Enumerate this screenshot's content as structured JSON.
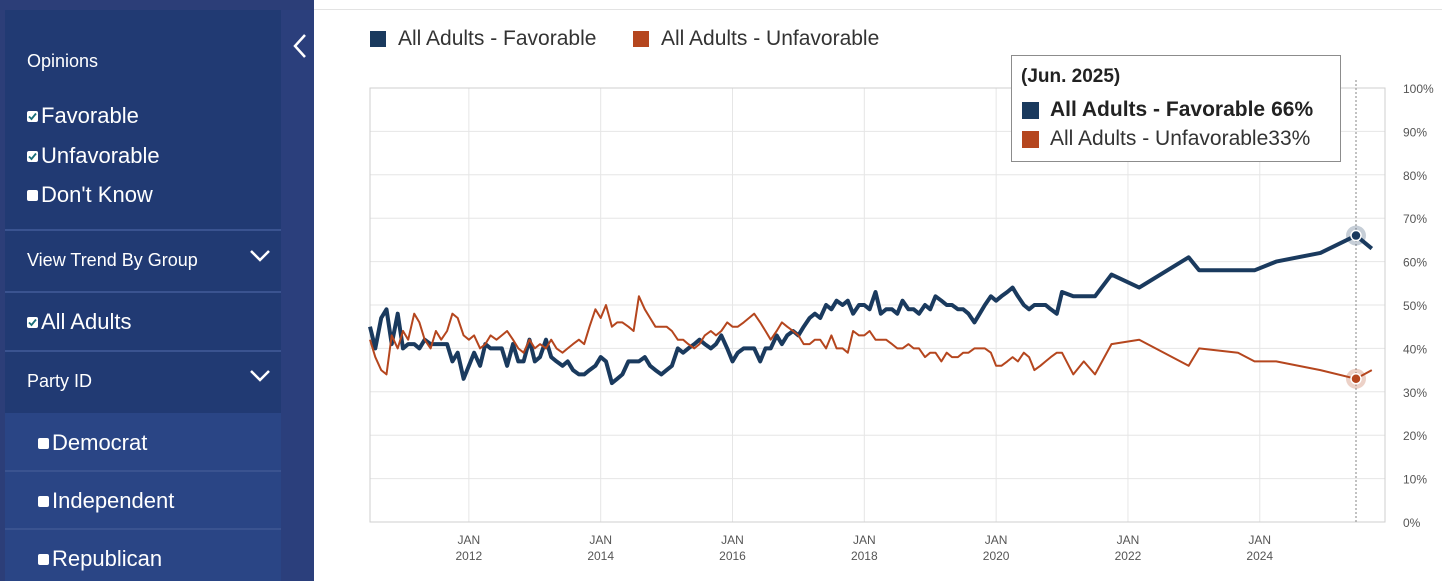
{
  "sidebar": {
    "opinions_title": "Opinions",
    "opinions": [
      {
        "label": "Favorable",
        "checked": true
      },
      {
        "label": "Unfavorable",
        "checked": true
      },
      {
        "label": "Don't Know",
        "checked": false
      }
    ],
    "trend_title": "View Trend By Group",
    "all_adults": {
      "label": "All Adults",
      "checked": true
    },
    "party_title": "Party ID",
    "parties": [
      {
        "label": "Democrat",
        "checked": false
      },
      {
        "label": "Independent",
        "checked": false
      },
      {
        "label": "Republican",
        "checked": false
      }
    ]
  },
  "tooltip": {
    "date": "(Jun. 2025)",
    "fav_label": "All Adults - Favorable",
    "fav_value": "66%",
    "unfav_label": "All Adults - Unfavorable",
    "unfav_value": "33%"
  },
  "colors": {
    "favorable": "#1a3a5e",
    "unfavorable": "#b5461e",
    "sidebar": "#213a73"
  },
  "chart_data": {
    "type": "line",
    "title": "",
    "xlabel": "",
    "ylabel": "",
    "ylim": [
      0,
      100
    ],
    "xlim": [
      2010.5,
      2025.9
    ],
    "yticks": [
      "0%",
      "10%",
      "20%",
      "30%",
      "40%",
      "50%",
      "60%",
      "70%",
      "80%",
      "90%",
      "100%"
    ],
    "xticks": [
      {
        "value": 2012,
        "month": "JAN",
        "year": "2012"
      },
      {
        "value": 2014,
        "month": "JAN",
        "year": "2014"
      },
      {
        "value": 2016,
        "month": "JAN",
        "year": "2016"
      },
      {
        "value": 2018,
        "month": "JAN",
        "year": "2018"
      },
      {
        "value": 2020,
        "month": "JAN",
        "year": "2020"
      },
      {
        "value": 2022,
        "month": "JAN",
        "year": "2022"
      },
      {
        "value": 2024,
        "month": "JAN",
        "year": "2024"
      }
    ],
    "highlight_x": 2025.46,
    "series": [
      {
        "name": "All Adults - Favorable",
        "color": "#1a3a5e",
        "points": [
          [
            2010.5,
            45
          ],
          [
            2010.58,
            40
          ],
          [
            2010.67,
            47
          ],
          [
            2010.75,
            49
          ],
          [
            2010.83,
            41
          ],
          [
            2010.92,
            48
          ],
          [
            2011.0,
            40
          ],
          [
            2011.08,
            41
          ],
          [
            2011.17,
            41
          ],
          [
            2011.25,
            40
          ],
          [
            2011.33,
            42
          ],
          [
            2011.42,
            41
          ],
          [
            2011.5,
            41
          ],
          [
            2011.58,
            41
          ],
          [
            2011.67,
            41
          ],
          [
            2011.75,
            37
          ],
          [
            2011.83,
            39
          ],
          [
            2011.92,
            33
          ],
          [
            2012.0,
            36
          ],
          [
            2012.08,
            39
          ],
          [
            2012.17,
            36
          ],
          [
            2012.25,
            41
          ],
          [
            2012.33,
            40
          ],
          [
            2012.42,
            40
          ],
          [
            2012.5,
            40
          ],
          [
            2012.58,
            36
          ],
          [
            2012.67,
            41
          ],
          [
            2012.75,
            37
          ],
          [
            2012.83,
            37
          ],
          [
            2012.92,
            42
          ],
          [
            2013.0,
            37
          ],
          [
            2013.08,
            38
          ],
          [
            2013.17,
            42
          ],
          [
            2013.25,
            38
          ],
          [
            2013.33,
            37
          ],
          [
            2013.42,
            36
          ],
          [
            2013.5,
            37
          ],
          [
            2013.58,
            35
          ],
          [
            2013.67,
            34
          ],
          [
            2013.75,
            34
          ],
          [
            2013.83,
            35
          ],
          [
            2013.92,
            36
          ],
          [
            2014.0,
            38
          ],
          [
            2014.08,
            37
          ],
          [
            2014.17,
            32
          ],
          [
            2014.25,
            33
          ],
          [
            2014.33,
            34
          ],
          [
            2014.42,
            37
          ],
          [
            2014.5,
            37
          ],
          [
            2014.58,
            37
          ],
          [
            2014.67,
            38
          ],
          [
            2014.75,
            36
          ],
          [
            2014.83,
            35
          ],
          [
            2014.92,
            34
          ],
          [
            2015.0,
            35
          ],
          [
            2015.08,
            36
          ],
          [
            2015.17,
            40
          ],
          [
            2015.25,
            39
          ],
          [
            2015.33,
            40
          ],
          [
            2015.42,
            41
          ],
          [
            2015.5,
            42
          ],
          [
            2015.58,
            41
          ],
          [
            2015.67,
            40
          ],
          [
            2015.75,
            41
          ],
          [
            2015.83,
            43
          ],
          [
            2015.92,
            40
          ],
          [
            2016.0,
            37
          ],
          [
            2016.08,
            39
          ],
          [
            2016.17,
            40
          ],
          [
            2016.25,
            40
          ],
          [
            2016.33,
            40
          ],
          [
            2016.42,
            37
          ],
          [
            2016.5,
            40
          ],
          [
            2016.58,
            40
          ],
          [
            2016.67,
            43
          ],
          [
            2016.75,
            41
          ],
          [
            2016.83,
            43
          ],
          [
            2016.92,
            44
          ],
          [
            2017.0,
            43
          ],
          [
            2017.08,
            45
          ],
          [
            2017.17,
            47
          ],
          [
            2017.25,
            48
          ],
          [
            2017.33,
            47
          ],
          [
            2017.42,
            50
          ],
          [
            2017.5,
            49
          ],
          [
            2017.58,
            51
          ],
          [
            2017.67,
            50
          ],
          [
            2017.75,
            51
          ],
          [
            2017.83,
            48
          ],
          [
            2017.92,
            50
          ],
          [
            2018.0,
            50
          ],
          [
            2018.08,
            49
          ],
          [
            2018.17,
            53
          ],
          [
            2018.25,
            48
          ],
          [
            2018.33,
            49
          ],
          [
            2018.42,
            49
          ],
          [
            2018.5,
            48
          ],
          [
            2018.58,
            51
          ],
          [
            2018.67,
            49
          ],
          [
            2018.75,
            49
          ],
          [
            2018.83,
            48
          ],
          [
            2018.92,
            50
          ],
          [
            2019.0,
            49
          ],
          [
            2019.08,
            52
          ],
          [
            2019.17,
            51
          ],
          [
            2019.25,
            50
          ],
          [
            2019.33,
            50
          ],
          [
            2019.42,
            49
          ],
          [
            2019.5,
            49
          ],
          [
            2019.58,
            48
          ],
          [
            2019.67,
            46
          ],
          [
            2019.75,
            48
          ],
          [
            2019.83,
            50
          ],
          [
            2019.92,
            52
          ],
          [
            2020.0,
            51
          ],
          [
            2020.08,
            52
          ],
          [
            2020.17,
            53
          ],
          [
            2020.25,
            54
          ],
          [
            2020.33,
            52
          ],
          [
            2020.42,
            50
          ],
          [
            2020.5,
            49
          ],
          [
            2020.58,
            50
          ],
          [
            2020.67,
            50
          ],
          [
            2020.75,
            50
          ],
          [
            2020.83,
            49
          ],
          [
            2020.92,
            48
          ],
          [
            2021.0,
            53
          ],
          [
            2021.17,
            52
          ],
          [
            2021.33,
            52
          ],
          [
            2021.5,
            52
          ],
          [
            2021.75,
            57
          ],
          [
            2022.17,
            54
          ],
          [
            2022.92,
            61
          ],
          [
            2023.08,
            58
          ],
          [
            2023.67,
            58
          ],
          [
            2023.92,
            58
          ],
          [
            2024.25,
            60
          ],
          [
            2024.92,
            62
          ],
          [
            2025.46,
            66
          ],
          [
            2025.7,
            63
          ]
        ]
      },
      {
        "name": "All Adults - Unfavorable",
        "color": "#b5461e",
        "points": [
          [
            2010.5,
            42
          ],
          [
            2010.58,
            38
          ],
          [
            2010.67,
            35
          ],
          [
            2010.75,
            34
          ],
          [
            2010.83,
            43
          ],
          [
            2010.92,
            40
          ],
          [
            2011.0,
            44
          ],
          [
            2011.08,
            42
          ],
          [
            2011.17,
            48
          ],
          [
            2011.25,
            46
          ],
          [
            2011.33,
            42
          ],
          [
            2011.42,
            40
          ],
          [
            2011.5,
            44
          ],
          [
            2011.58,
            42
          ],
          [
            2011.67,
            44
          ],
          [
            2011.75,
            48
          ],
          [
            2011.83,
            47
          ],
          [
            2011.92,
            43
          ],
          [
            2012.0,
            42
          ],
          [
            2012.08,
            43
          ],
          [
            2012.17,
            40
          ],
          [
            2012.25,
            41
          ],
          [
            2012.33,
            43
          ],
          [
            2012.42,
            42
          ],
          [
            2012.5,
            43
          ],
          [
            2012.58,
            44
          ],
          [
            2012.67,
            42
          ],
          [
            2012.75,
            40
          ],
          [
            2012.83,
            39
          ],
          [
            2012.92,
            42
          ],
          [
            2013.0,
            40
          ],
          [
            2013.08,
            41
          ],
          [
            2013.17,
            40
          ],
          [
            2013.25,
            42
          ],
          [
            2013.33,
            40
          ],
          [
            2013.42,
            39
          ],
          [
            2013.5,
            40
          ],
          [
            2013.58,
            41
          ],
          [
            2013.67,
            42
          ],
          [
            2013.75,
            41
          ],
          [
            2013.83,
            45
          ],
          [
            2013.92,
            49
          ],
          [
            2014.0,
            47
          ],
          [
            2014.08,
            50
          ],
          [
            2014.17,
            45
          ],
          [
            2014.25,
            46
          ],
          [
            2014.33,
            46
          ],
          [
            2014.42,
            45
          ],
          [
            2014.5,
            44
          ],
          [
            2014.58,
            52
          ],
          [
            2014.67,
            49
          ],
          [
            2014.75,
            47
          ],
          [
            2014.83,
            45
          ],
          [
            2014.92,
            45
          ],
          [
            2015.0,
            45
          ],
          [
            2015.08,
            44
          ],
          [
            2015.17,
            42
          ],
          [
            2015.25,
            42
          ],
          [
            2015.33,
            41
          ],
          [
            2015.42,
            40
          ],
          [
            2015.5,
            41
          ],
          [
            2015.58,
            43
          ],
          [
            2015.67,
            44
          ],
          [
            2015.75,
            43
          ],
          [
            2015.83,
            44
          ],
          [
            2015.92,
            46
          ],
          [
            2016.0,
            45
          ],
          [
            2016.08,
            45
          ],
          [
            2016.17,
            46
          ],
          [
            2016.25,
            47
          ],
          [
            2016.33,
            48
          ],
          [
            2016.42,
            46
          ],
          [
            2016.5,
            44
          ],
          [
            2016.58,
            42
          ],
          [
            2016.67,
            44
          ],
          [
            2016.75,
            46
          ],
          [
            2016.83,
            45
          ],
          [
            2016.92,
            44
          ],
          [
            2017.0,
            43
          ],
          [
            2017.08,
            41
          ],
          [
            2017.17,
            41
          ],
          [
            2017.25,
            42
          ],
          [
            2017.33,
            42
          ],
          [
            2017.42,
            40
          ],
          [
            2017.5,
            43
          ],
          [
            2017.58,
            40
          ],
          [
            2017.67,
            40
          ],
          [
            2017.75,
            39
          ],
          [
            2017.83,
            44
          ],
          [
            2017.92,
            43
          ],
          [
            2018.0,
            43
          ],
          [
            2018.08,
            44
          ],
          [
            2018.17,
            42
          ],
          [
            2018.25,
            42
          ],
          [
            2018.33,
            42
          ],
          [
            2018.42,
            41
          ],
          [
            2018.5,
            40
          ],
          [
            2018.58,
            40
          ],
          [
            2018.67,
            41
          ],
          [
            2018.75,
            40
          ],
          [
            2018.83,
            40
          ],
          [
            2018.92,
            38
          ],
          [
            2019.0,
            39
          ],
          [
            2019.08,
            39
          ],
          [
            2019.17,
            37
          ],
          [
            2019.25,
            39
          ],
          [
            2019.33,
            38
          ],
          [
            2019.42,
            38
          ],
          [
            2019.5,
            39
          ],
          [
            2019.58,
            39
          ],
          [
            2019.67,
            40
          ],
          [
            2019.75,
            40
          ],
          [
            2019.83,
            40
          ],
          [
            2019.92,
            39
          ],
          [
            2020.0,
            36
          ],
          [
            2020.08,
            36
          ],
          [
            2020.17,
            37
          ],
          [
            2020.25,
            38
          ],
          [
            2020.33,
            37
          ],
          [
            2020.42,
            39
          ],
          [
            2020.5,
            38
          ],
          [
            2020.58,
            35
          ],
          [
            2020.67,
            36
          ],
          [
            2020.75,
            37
          ],
          [
            2020.83,
            38
          ],
          [
            2020.92,
            39
          ],
          [
            2021.0,
            39
          ],
          [
            2021.17,
            34
          ],
          [
            2021.33,
            37
          ],
          [
            2021.5,
            34
          ],
          [
            2021.75,
            41
          ],
          [
            2022.17,
            42
          ],
          [
            2022.92,
            36
          ],
          [
            2023.08,
            40
          ],
          [
            2023.67,
            39
          ],
          [
            2023.92,
            37
          ],
          [
            2024.25,
            37
          ],
          [
            2024.92,
            35
          ],
          [
            2025.46,
            33
          ],
          [
            2025.7,
            35
          ]
        ]
      }
    ]
  }
}
